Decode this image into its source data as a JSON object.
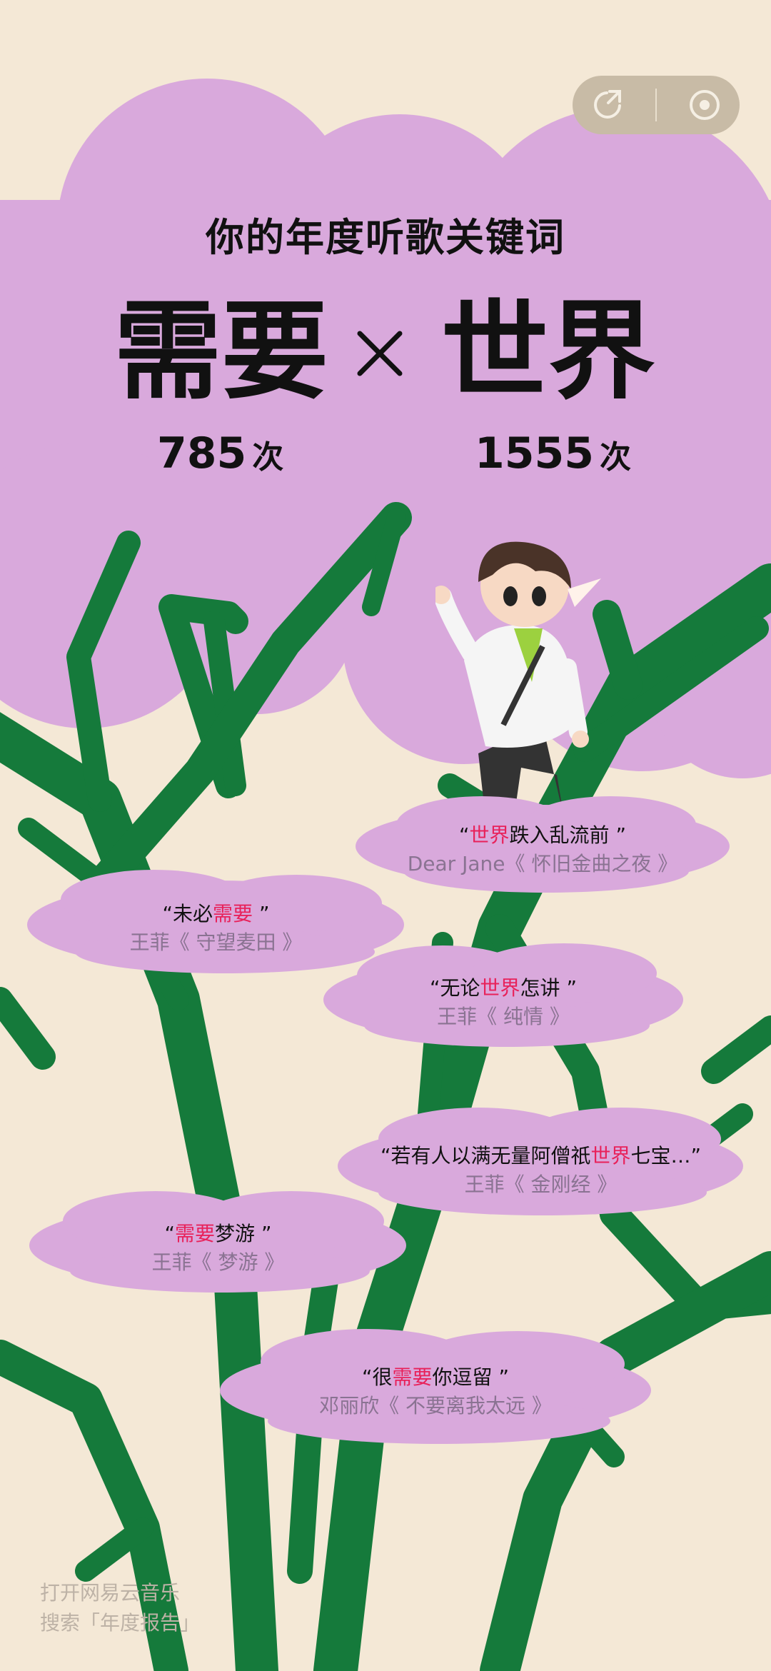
{
  "header": {
    "title": "你的年度听歌关键词"
  },
  "keywords": [
    {
      "word": "需要",
      "count": "785",
      "unit": "次"
    },
    {
      "word": "世界",
      "count": "1555",
      "unit": "次"
    }
  ],
  "toolbar": {
    "share_icon": "share-icon",
    "target_icon": "target-icon"
  },
  "lyrics": [
    {
      "pre": "“",
      "hl": "世界",
      "post": "跌入乱流前 ”",
      "source": "Dear Jane《 怀旧金曲之夜 》"
    },
    {
      "pre": "“未必",
      "hl": "需要",
      "post": " ”",
      "source": "王菲《 守望麦田 》"
    },
    {
      "pre": "“无论",
      "hl": "世界",
      "post": "怎讲 ”",
      "source": "王菲《 纯情 》"
    },
    {
      "pre": "“若有人以满无量阿僧祇",
      "hl": "世界",
      "post": "七宝…”",
      "source": "王菲《 金刚经 》"
    },
    {
      "pre": "“",
      "hl": "需要",
      "post": "梦游 ”",
      "source": "王菲《 梦游 》"
    },
    {
      "pre": "“很",
      "hl": "需要",
      "post": "你逗留 ”",
      "source": "邓丽欣《 不要离我太远 》"
    }
  ],
  "footer": {
    "line1": "打开网易云音乐",
    "line2": "搜索「年度报告」"
  },
  "colors": {
    "background": "#f4e8d6",
    "cloud": "#d9a9dc",
    "branch": "#157a3b",
    "highlight": "#e8215a"
  }
}
